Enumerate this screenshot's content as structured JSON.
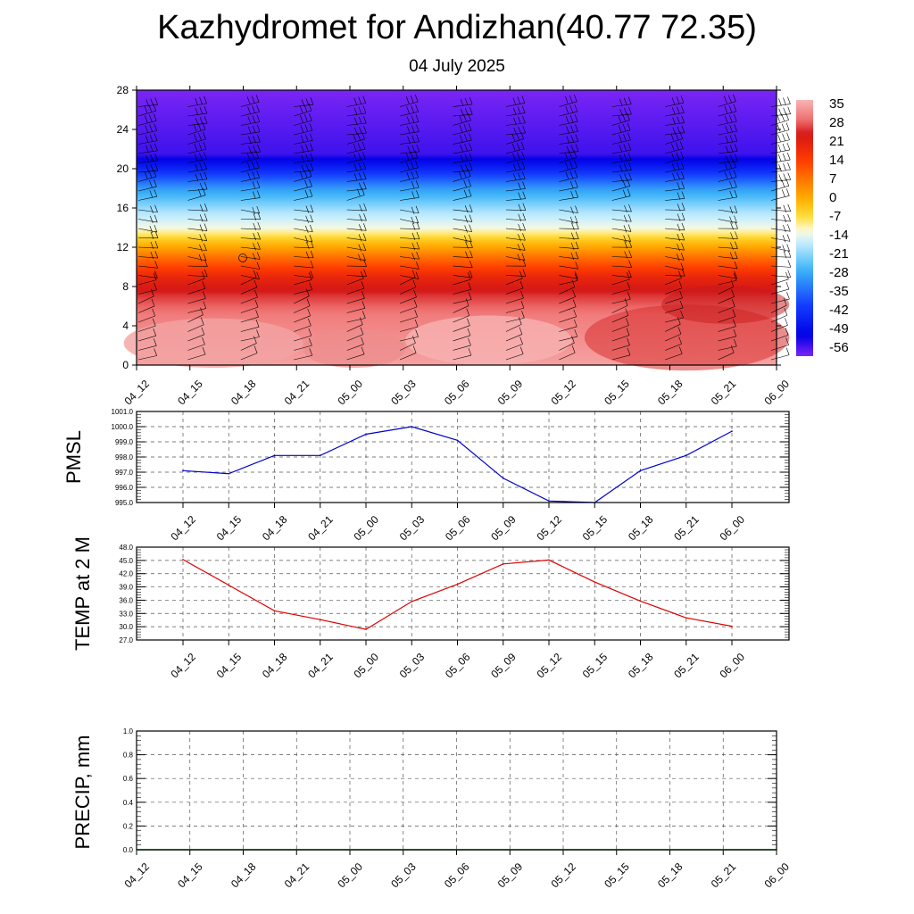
{
  "title": "Kazhydromet for Andizhan(40.77 72.35)",
  "subtitle": "04 July 2025",
  "chart_data": [
    {
      "type": "heatmap",
      "name": "cross-section",
      "x": [
        "04_12",
        "04_15",
        "04_18",
        "04_21",
        "05_00",
        "05_03",
        "05_06",
        "05_09",
        "05_12",
        "05_15",
        "05_18",
        "05_21",
        "06_00"
      ],
      "y_ticks": [
        0,
        4,
        8,
        12,
        16,
        20,
        24,
        28
      ],
      "ylim": [
        0,
        28
      ],
      "colorbar": {
        "labels": [
          "35",
          "28",
          "21",
          "14",
          "7",
          "0",
          "-7",
          "-14",
          "-21",
          "-28",
          "-35",
          "-42",
          "-49",
          "-56"
        ],
        "stops": [
          {
            "v": 38,
            "c": "#f8b4b4"
          },
          {
            "v": 30,
            "c": "#ee6b6b"
          },
          {
            "v": 25,
            "c": "#d41616"
          },
          {
            "v": 15,
            "c": "#ff3a00"
          },
          {
            "v": 7,
            "c": "#ff7a00"
          },
          {
            "v": 0,
            "c": "#ffb000"
          },
          {
            "v": -7,
            "c": "#ffe040"
          },
          {
            "v": -12,
            "c": "#fffbe0"
          },
          {
            "v": -17,
            "c": "#c0ecff"
          },
          {
            "v": -27,
            "c": "#3cb4f8"
          },
          {
            "v": -40,
            "c": "#1440ff"
          },
          {
            "v": -52,
            "c": "#0000e6"
          },
          {
            "v": -60,
            "c": "#7a25f4"
          }
        ]
      },
      "profile": [
        {
          "h": 0,
          "t": 36
        },
        {
          "h": 5,
          "t": 32
        },
        {
          "h": 7,
          "t": 27
        },
        {
          "h": 9,
          "t": 20
        },
        {
          "h": 11,
          "t": 8
        },
        {
          "h": 12.5,
          "t": -2
        },
        {
          "h": 14,
          "t": -13
        },
        {
          "h": 15.5,
          "t": -18
        },
        {
          "h": 18,
          "t": -30
        },
        {
          "h": 20,
          "t": -45
        },
        {
          "h": 21.5,
          "t": -56
        },
        {
          "h": 28,
          "t": -60
        }
      ]
    },
    {
      "type": "line",
      "name": "pmsl",
      "ylabel": "PMSL",
      "x": [
        "04_12",
        "04_15",
        "04_18",
        "04_21",
        "05_00",
        "05_03",
        "05_06",
        "05_09",
        "05_12",
        "05_15",
        "05_18",
        "05_21",
        "06_00"
      ],
      "values": [
        997.1,
        996.9,
        998.1,
        998.1,
        999.5,
        1000.0,
        999.1,
        996.6,
        995.1,
        995.0,
        997.1,
        998.1,
        999.7
      ],
      "y_ticks": [
        "995.0",
        "996.0",
        "997.0",
        "998.0",
        "999.0",
        "1000.0",
        "1001.0"
      ],
      "ylim": [
        995,
        1001
      ],
      "color": "#0000cc"
    },
    {
      "type": "line",
      "name": "temp",
      "ylabel": "TEMP at 2 M",
      "x": [
        "04_12",
        "04_15",
        "04_18",
        "04_21",
        "05_00",
        "05_03",
        "05_06",
        "05_09",
        "05_12",
        "05_15",
        "05_18",
        "05_21",
        "06_00"
      ],
      "values": [
        45.2,
        39.4,
        33.6,
        31.6,
        29.4,
        35.7,
        39.6,
        44.2,
        45.1,
        40.1,
        35.8,
        32.0,
        30.1
      ],
      "y_ticks": [
        "27.0",
        "30.0",
        "33.0",
        "36.0",
        "39.0",
        "42.0",
        "45.0",
        "48.0"
      ],
      "ylim": [
        27,
        48
      ],
      "color": "#dd0000"
    },
    {
      "type": "line",
      "name": "precip",
      "ylabel": "PRECIP, mm",
      "x": [
        "04_12",
        "04_15",
        "04_18",
        "04_21",
        "05_00",
        "05_03",
        "05_06",
        "05_09",
        "05_12",
        "05_15",
        "05_18",
        "05_21",
        "06_00"
      ],
      "values": [
        0,
        0,
        0,
        0,
        0,
        0,
        0,
        0,
        0,
        0,
        0,
        0,
        0
      ],
      "y_ticks": [
        "0.0",
        "0.2",
        "0.4",
        "0.6",
        "0.8",
        "1.0"
      ],
      "ylim": [
        0,
        1
      ],
      "color": "#006600"
    }
  ]
}
